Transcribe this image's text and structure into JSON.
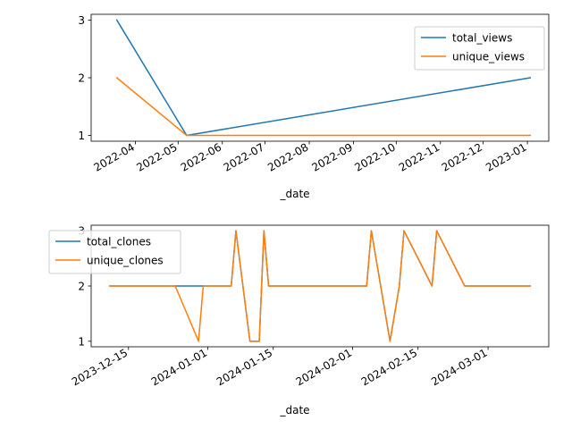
{
  "chart_data": [
    {
      "type": "line",
      "xlabel": "_date",
      "ylabel": "",
      "x_type": "date",
      "xlim": [
        "2022-03-01",
        "2023-01-16"
      ],
      "ylim": [
        0.9,
        3.1
      ],
      "yticks": [
        1,
        2,
        3
      ],
      "xticks": [
        "2022-04-01",
        "2022-05-01",
        "2022-06-01",
        "2022-07-01",
        "2022-08-01",
        "2022-09-01",
        "2022-10-01",
        "2022-11-01",
        "2022-12-01",
        "2023-01-01"
      ],
      "xtick_labels": [
        "2022-04",
        "2022-05",
        "2022-06",
        "2022-07",
        "2022-08",
        "2022-09",
        "2022-10",
        "2022-11",
        "2022-12",
        "2023-01"
      ],
      "legend": "upper right",
      "grid": false,
      "series": [
        {
          "name": "total_views",
          "color": "#1f77b4",
          "points": [
            [
              "2022-03-19",
              3
            ],
            [
              "2022-05-07",
              1
            ],
            [
              "2023-01-03",
              2
            ]
          ]
        },
        {
          "name": "unique_views",
          "color": "#ff7f0e",
          "points": [
            [
              "2022-03-19",
              2
            ],
            [
              "2022-05-07",
              1
            ],
            [
              "2023-01-03",
              1
            ]
          ]
        }
      ]
    },
    {
      "type": "line",
      "xlabel": "_date",
      "ylabel": "",
      "x_type": "date",
      "xlim": [
        "2023-12-07",
        "2024-03-14"
      ],
      "ylim": [
        0.9,
        3.1
      ],
      "yticks": [
        1,
        2,
        3
      ],
      "xticks": [
        "2023-12-15",
        "2024-01-01",
        "2024-01-15",
        "2024-02-01",
        "2024-02-15",
        "2024-03-01"
      ],
      "xtick_labels": [
        "2023-12-15",
        "2024-01-01",
        "2024-01-15",
        "2024-02-01",
        "2024-02-15",
        "2024-03-01"
      ],
      "legend": "upper left",
      "grid": false,
      "series": [
        {
          "name": "total_clones",
          "color": "#1f77b4",
          "points": [
            [
              "2023-12-11",
              2
            ],
            [
              "2023-12-30",
              2
            ],
            [
              "2023-12-31",
              2
            ],
            [
              "2024-01-06",
              2
            ],
            [
              "2024-01-07",
              3
            ],
            [
              "2024-01-10",
              1
            ],
            [
              "2024-01-12",
              1
            ],
            [
              "2024-01-13",
              3
            ],
            [
              "2024-01-14",
              2
            ],
            [
              "2024-02-04",
              2
            ],
            [
              "2024-02-05",
              3
            ],
            [
              "2024-02-09",
              1
            ],
            [
              "2024-02-11",
              2
            ],
            [
              "2024-02-12",
              3
            ],
            [
              "2024-02-18",
              2
            ],
            [
              "2024-02-19",
              3
            ],
            [
              "2024-02-25",
              2
            ],
            [
              "2024-03-10",
              2
            ]
          ]
        },
        {
          "name": "unique_clones",
          "color": "#ff7f0e",
          "points": [
            [
              "2023-12-11",
              2
            ],
            [
              "2023-12-25",
              2
            ],
            [
              "2023-12-30",
              1
            ],
            [
              "2023-12-31",
              2
            ],
            [
              "2024-01-06",
              2
            ],
            [
              "2024-01-07",
              3
            ],
            [
              "2024-01-10",
              1
            ],
            [
              "2024-01-12",
              1
            ],
            [
              "2024-01-13",
              3
            ],
            [
              "2024-01-14",
              2
            ],
            [
              "2024-02-04",
              2
            ],
            [
              "2024-02-05",
              3
            ],
            [
              "2024-02-09",
              1
            ],
            [
              "2024-02-11",
              2
            ],
            [
              "2024-02-12",
              3
            ],
            [
              "2024-02-18",
              2
            ],
            [
              "2024-02-19",
              3
            ],
            [
              "2024-02-25",
              2
            ],
            [
              "2024-03-10",
              2
            ]
          ]
        }
      ]
    }
  ]
}
